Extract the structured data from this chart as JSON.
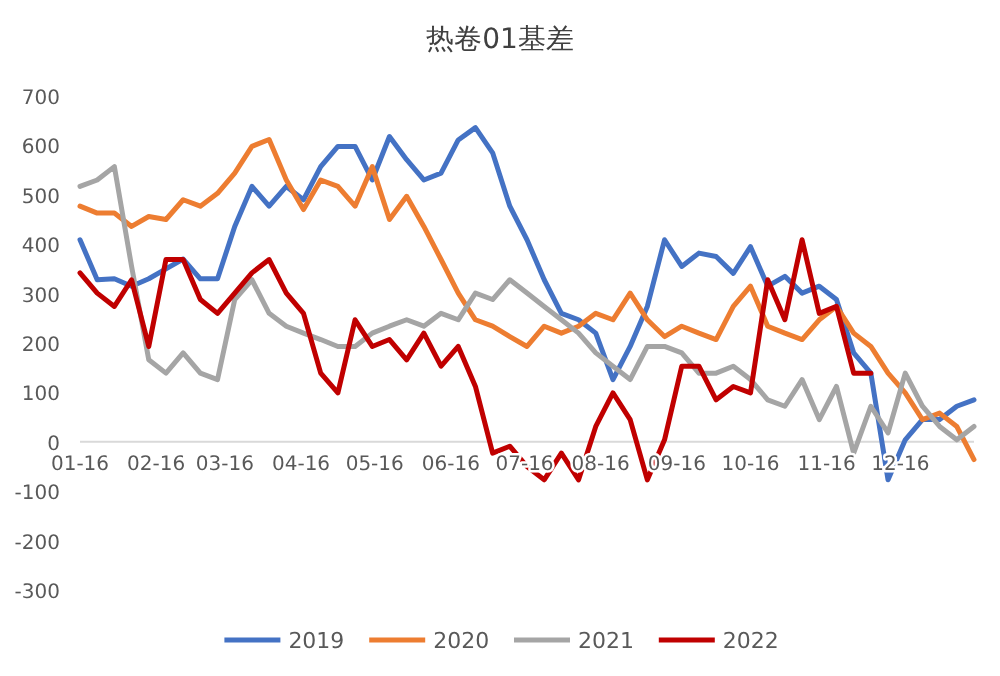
{
  "chart_data": {
    "type": "line",
    "title": "热卷01基差",
    "x": [
      "2021-01-16",
      "2021-01-23",
      "2021-01-30",
      "2021-02-06",
      "2021-02-13",
      "2021-02-20",
      "2021-02-27",
      "2021-03-06",
      "2021-03-13",
      "2021-03-20",
      "2021-03-27",
      "2021-04-03",
      "2021-04-10",
      "2021-04-17",
      "2021-04-24",
      "2021-05-01",
      "2021-05-08",
      "2021-05-15",
      "2021-05-22",
      "2021-05-29",
      "2021-06-05",
      "2021-06-12",
      "2021-06-19",
      "2021-06-26",
      "2021-07-03",
      "2021-07-10",
      "2021-07-17",
      "2021-07-24",
      "2021-07-31",
      "2021-08-07",
      "2021-08-14",
      "2021-08-21",
      "2021-08-28",
      "2021-09-04",
      "2021-09-11",
      "2021-09-18",
      "2021-09-25",
      "2021-10-02",
      "2021-10-09",
      "2021-10-16",
      "2021-10-23",
      "2021-10-30",
      "2021-11-06",
      "2021-11-13",
      "2021-11-20",
      "2021-11-27",
      "2021-12-04",
      "2021-12-11",
      "2021-12-18",
      "2021-12-25",
      "2022-01-01",
      "2022-01-08",
      "2022-01-15"
    ],
    "series": [
      {
        "name": "2019",
        "color": "#4472c4",
        "values": [
          409,
          328,
          330,
          315,
          330,
          350,
          370,
          330,
          330,
          436,
          517,
          477,
          517,
          490,
          557,
          598,
          598,
          530,
          618,
          571,
          530,
          544,
          611,
          636,
          585,
          477,
          409,
          328,
          260,
          247,
          220,
          126,
          193,
          274,
          409,
          355,
          382,
          375,
          341,
          395,
          315,
          335,
          301,
          315,
          288,
          180,
          139,
          -77,
          4,
          45,
          45,
          72,
          85
        ]
      },
      {
        "name": "2020",
        "color": "#ed7d31",
        "values": [
          477,
          463,
          463,
          436,
          456,
          450,
          490,
          477,
          503,
          544,
          598,
          612,
          530,
          470,
          530,
          517,
          477,
          557,
          450,
          497,
          436,
          369,
          301,
          247,
          234,
          213,
          193,
          234,
          220,
          234,
          260,
          247,
          301,
          247,
          213,
          234,
          220,
          207,
          274,
          315,
          234,
          220,
          207,
          247,
          274,
          220,
          193,
          139,
          99,
          45,
          58,
          31,
          -36
        ]
      },
      {
        "name": "2021",
        "color": "#a5a5a5",
        "values": [
          517,
          530,
          557,
          355,
          166,
          139,
          180,
          139,
          126,
          288,
          328,
          260,
          234,
          220,
          207,
          193,
          193,
          220,
          234,
          247,
          234,
          260,
          247,
          301,
          288,
          328,
          301,
          274,
          247,
          220,
          180,
          153,
          126,
          193,
          193,
          180,
          139,
          139,
          153,
          126,
          85,
          72,
          126,
          45,
          112,
          -23,
          72,
          18,
          139,
          72,
          31,
          4,
          31
        ]
      },
      {
        "name": "2022",
        "color": "#c00000",
        "values": [
          342,
          301,
          274,
          328,
          193,
          369,
          369,
          288,
          260,
          301,
          342,
          369,
          301,
          260,
          139,
          99,
          247,
          193,
          207,
          166,
          220,
          153,
          193,
          112,
          -23,
          -9,
          -50,
          -77,
          -23,
          -77,
          31,
          99,
          45,
          -77,
          4,
          153,
          153,
          85,
          112,
          99,
          328,
          247,
          409,
          260,
          274,
          139,
          139,
          null,
          null,
          null,
          null,
          null,
          null
        ]
      }
    ],
    "xlim": [
      "2021-01-16",
      "2022-01-15"
    ],
    "xticks": [
      {
        "value": "2021-01-16",
        "label": "01-16"
      },
      {
        "value": "2021-02-16",
        "label": "02-16"
      },
      {
        "value": "2021-03-16",
        "label": "03-16"
      },
      {
        "value": "2021-04-16",
        "label": "04-16"
      },
      {
        "value": "2021-05-16",
        "label": "05-16"
      },
      {
        "value": "2021-06-16",
        "label": "06-16"
      },
      {
        "value": "2021-07-16",
        "label": "07-16"
      },
      {
        "value": "2021-08-16",
        "label": "08-16"
      },
      {
        "value": "2021-09-16",
        "label": "09-16"
      },
      {
        "value": "2021-10-16",
        "label": "10-16"
      },
      {
        "value": "2021-11-16",
        "label": "11-16"
      },
      {
        "value": "2021-12-16",
        "label": "12-16"
      }
    ],
    "ylim": [
      -300,
      700
    ],
    "yticks": [
      -300,
      -200,
      -100,
      0,
      100,
      200,
      300,
      400,
      500,
      600,
      700
    ],
    "legend": "bottom"
  }
}
